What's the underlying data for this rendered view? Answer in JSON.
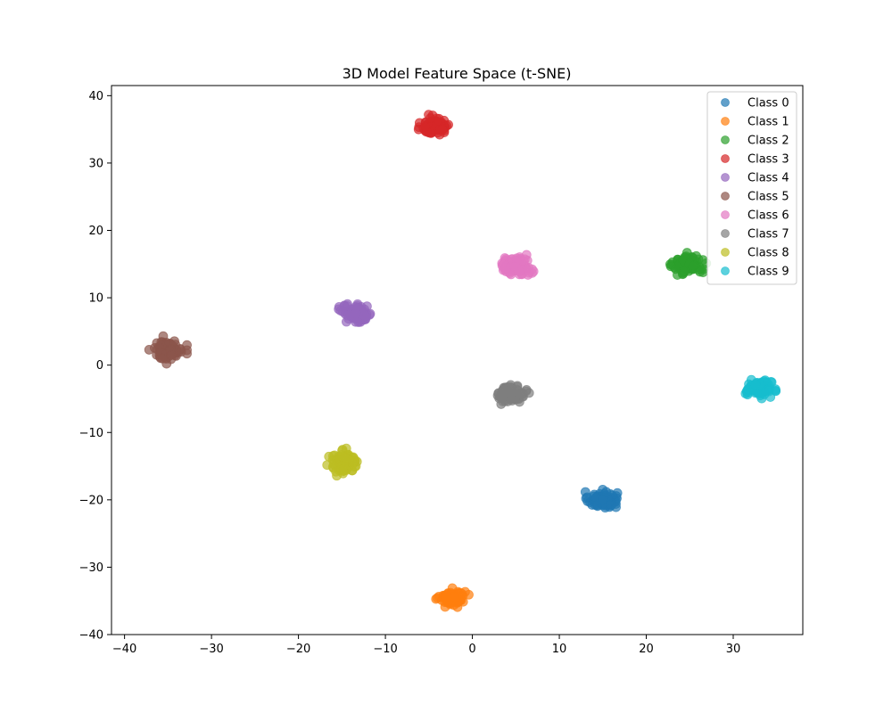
{
  "chart_data": {
    "type": "scatter",
    "title": "3D Model Feature Space (t-SNE)",
    "xlabel": "",
    "ylabel": "",
    "xlim": [
      -41.5,
      38
    ],
    "ylim": [
      -40,
      41.5
    ],
    "xticks": [
      -40,
      -30,
      -20,
      -10,
      0,
      10,
      20,
      30
    ],
    "yticks": [
      -40,
      -30,
      -20,
      -10,
      0,
      10,
      20,
      30,
      40
    ],
    "grid": false,
    "legend_position": "top-right",
    "marker_alpha": 0.7,
    "series": [
      {
        "name": "Class 0",
        "color": "#1f77b4",
        "center": [
          15.0,
          -20.0
        ],
        "spread": [
          1.5,
          1.0
        ],
        "count": 100
      },
      {
        "name": "Class 1",
        "color": "#ff7f0e",
        "center": [
          -2.3,
          -34.5
        ],
        "spread": [
          1.3,
          0.9
        ],
        "count": 100
      },
      {
        "name": "Class 2",
        "color": "#2ca02c",
        "center": [
          24.8,
          14.9
        ],
        "spread": [
          1.5,
          1.1
        ],
        "count": 100
      },
      {
        "name": "Class 3",
        "color": "#d62728",
        "center": [
          -4.2,
          35.5
        ],
        "spread": [
          1.4,
          1.0
        ],
        "count": 100
      },
      {
        "name": "Class 4",
        "color": "#9467bd",
        "center": [
          -13.2,
          7.6
        ],
        "spread": [
          1.5,
          1.1
        ],
        "count": 100
      },
      {
        "name": "Class 5",
        "color": "#8c564b",
        "center": [
          -35.0,
          2.3
        ],
        "spread": [
          1.5,
          1.1
        ],
        "count": 100
      },
      {
        "name": "Class 6",
        "color": "#e377c2",
        "center": [
          5.0,
          14.7
        ],
        "spread": [
          1.6,
          1.1
        ],
        "count": 100
      },
      {
        "name": "Class 7",
        "color": "#7f7f7f",
        "center": [
          4.5,
          -4.3
        ],
        "spread": [
          1.4,
          1.0
        ],
        "count": 100
      },
      {
        "name": "Class 8",
        "color": "#bcbd22",
        "center": [
          -14.8,
          -14.4
        ],
        "spread": [
          1.5,
          1.2
        ],
        "count": 100
      },
      {
        "name": "Class 9",
        "color": "#17becf",
        "center": [
          33.0,
          -3.5
        ],
        "spread": [
          1.3,
          0.9
        ],
        "count": 100
      }
    ]
  }
}
